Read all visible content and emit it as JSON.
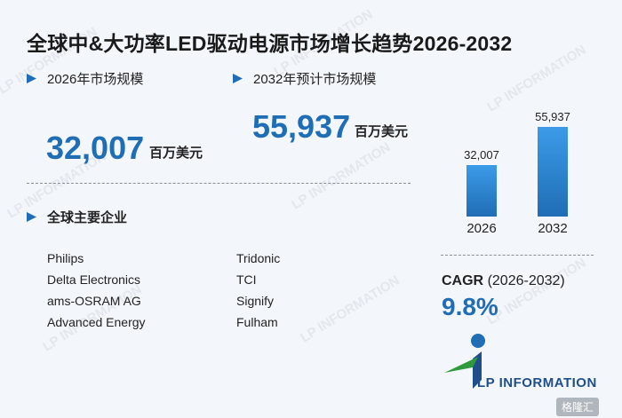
{
  "title": "全球中&大功率LED驱动电源市场增长趋势2026-2032",
  "market_2026": {
    "label": "2026年市场规模",
    "value": "32,007",
    "unit": "百万美元"
  },
  "market_2032": {
    "label": "2032年预计市场规模",
    "value": "55,937",
    "unit": "百万美元"
  },
  "companies_label": "全球主要企业",
  "companies_left": [
    "Philips",
    "Delta Electronics",
    "ams-OSRAM AG",
    "Advanced Energy"
  ],
  "companies_right": [
    "Tridonic",
    "TCI",
    "Signify",
    "Fulham"
  ],
  "chart_data": {
    "type": "bar",
    "categories": [
      "2026",
      "2032"
    ],
    "values": [
      32007,
      55937
    ],
    "data_labels": [
      "32,007",
      "55,937"
    ]
  },
  "cagr": {
    "label": "CAGR",
    "period": "(2026-2032)",
    "value": "9.8%"
  },
  "logo": {
    "text": "LP INFORMATION"
  },
  "watermark": "LP INFORMATION",
  "badge": "格隆汇",
  "colors": {
    "accent": "#1f6db5",
    "bar_top": "#3c9be8",
    "logo_green": "#2f9a3c"
  }
}
